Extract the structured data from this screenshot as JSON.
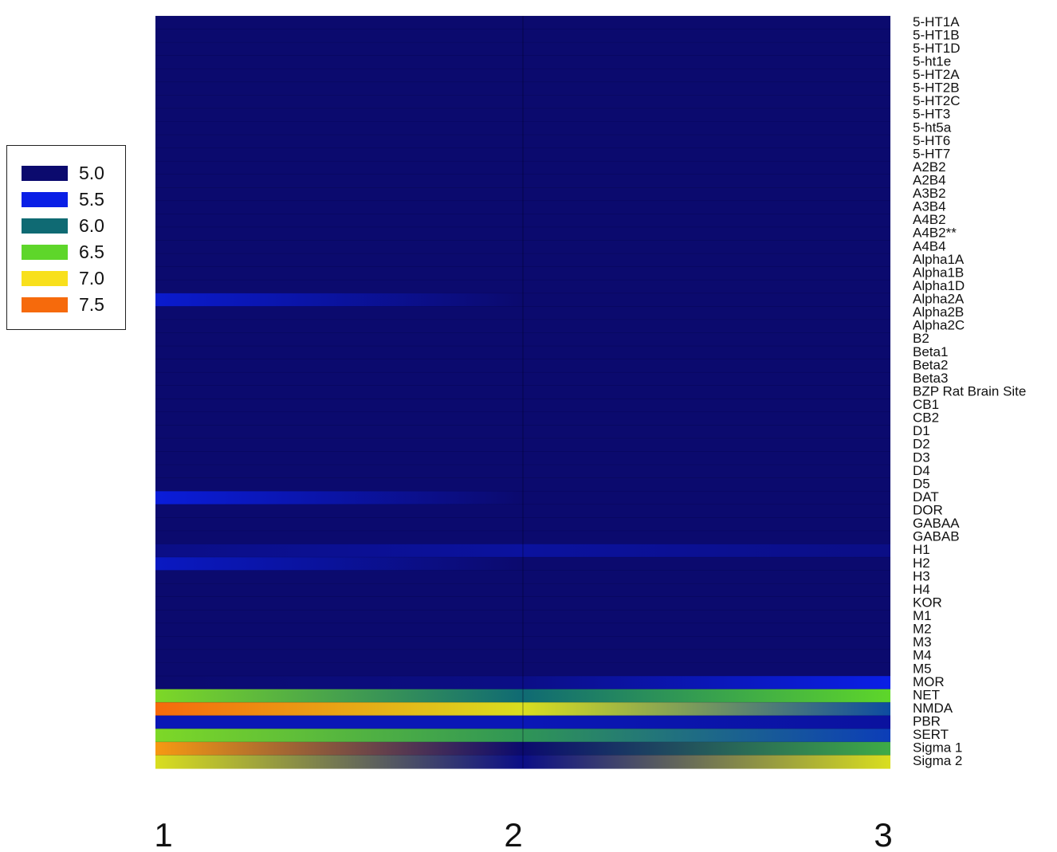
{
  "chart_data": {
    "type": "heatmap",
    "x": [
      "1",
      "2",
      "3"
    ],
    "y": [
      "5-HT1A",
      "5-HT1B",
      "5-HT1D",
      "5-ht1e",
      "5-HT2A",
      "5-HT2B",
      "5-HT2C",
      "5-HT3",
      "5-ht5a",
      "5-HT6",
      "5-HT7",
      "A2B2",
      "A2B4",
      "A3B2",
      "A3B4",
      "A4B2",
      "A4B2**",
      "A4B4",
      "Alpha1A",
      "Alpha1B",
      "Alpha1D",
      "Alpha2A",
      "Alpha2B",
      "Alpha2C",
      "B2",
      "Beta1",
      "Beta2",
      "Beta3",
      "BZP Rat Brain Site",
      "CB1",
      "CB2",
      "D1",
      "D2",
      "D3",
      "D4",
      "D5",
      "DAT",
      "DOR",
      "GABAA",
      "GABAB",
      "H1",
      "H2",
      "H3",
      "H4",
      "KOR",
      "M1",
      "M2",
      "M3",
      "M4",
      "M5",
      "MOR",
      "NET",
      "NMDA",
      "PBR",
      "SERT",
      "Sigma 1",
      "Sigma 2"
    ],
    "values": [
      [
        5.0,
        5.0,
        5.0
      ],
      [
        5.0,
        5.0,
        5.0
      ],
      [
        5.0,
        5.0,
        5.0
      ],
      [
        5.0,
        5.0,
        5.0
      ],
      [
        5.0,
        5.0,
        5.0
      ],
      [
        5.0,
        5.0,
        5.0
      ],
      [
        5.0,
        5.0,
        5.0
      ],
      [
        5.0,
        5.0,
        5.0
      ],
      [
        5.0,
        5.0,
        5.0
      ],
      [
        5.0,
        5.0,
        5.0
      ],
      [
        5.0,
        5.0,
        5.0
      ],
      [
        5.0,
        5.0,
        5.0
      ],
      [
        5.0,
        5.0,
        5.0
      ],
      [
        5.0,
        5.0,
        5.0
      ],
      [
        5.0,
        5.0,
        5.0
      ],
      [
        5.0,
        5.0,
        5.0
      ],
      [
        5.0,
        5.0,
        5.0
      ],
      [
        5.0,
        5.0,
        5.0
      ],
      [
        5.0,
        5.0,
        5.0
      ],
      [
        5.0,
        5.0,
        5.0
      ],
      [
        5.0,
        5.0,
        5.0
      ],
      [
        5.4,
        5.0,
        5.0
      ],
      [
        5.0,
        5.0,
        5.0
      ],
      [
        5.0,
        5.0,
        5.0
      ],
      [
        5.0,
        5.0,
        5.0
      ],
      [
        5.0,
        5.0,
        5.0
      ],
      [
        5.0,
        5.0,
        5.0
      ],
      [
        5.0,
        5.0,
        5.0
      ],
      [
        5.0,
        5.0,
        5.0
      ],
      [
        5.0,
        5.0,
        5.0
      ],
      [
        5.0,
        5.0,
        5.0
      ],
      [
        5.0,
        5.0,
        5.0
      ],
      [
        5.0,
        5.0,
        5.0
      ],
      [
        5.0,
        5.0,
        5.0
      ],
      [
        5.0,
        5.0,
        5.0
      ],
      [
        5.0,
        5.0,
        5.0
      ],
      [
        5.45,
        5.0,
        5.0
      ],
      [
        5.0,
        5.0,
        5.0
      ],
      [
        5.0,
        5.0,
        5.0
      ],
      [
        5.0,
        5.0,
        5.0
      ],
      [
        5.1,
        5.2,
        5.1
      ],
      [
        5.35,
        5.0,
        5.0
      ],
      [
        5.0,
        5.0,
        5.0
      ],
      [
        5.0,
        5.0,
        5.0
      ],
      [
        5.0,
        5.0,
        5.0
      ],
      [
        5.0,
        5.0,
        5.0
      ],
      [
        5.0,
        5.0,
        5.0
      ],
      [
        5.0,
        5.0,
        5.0
      ],
      [
        5.0,
        5.0,
        5.0
      ],
      [
        5.0,
        5.0,
        5.0
      ],
      [
        5.0,
        5.1,
        5.5
      ],
      [
        6.6,
        6.0,
        6.5
      ],
      [
        7.5,
        6.9,
        5.8
      ],
      [
        5.3,
        5.3,
        5.2
      ],
      [
        6.6,
        6.2,
        5.7
      ],
      [
        7.3,
        5.0,
        6.3
      ],
      [
        6.9,
        5.1,
        6.9
      ]
    ],
    "legend": [
      "5.0",
      "5.5",
      "6.0",
      "6.5",
      "7.0",
      "7.5"
    ],
    "legend_colors": [
      "#0b0a6e",
      "#0a1fe6",
      "#0f6a73",
      "#5ed62a",
      "#f8e01c",
      "#f66a0c"
    ],
    "legend_position": "left",
    "grid": false
  }
}
